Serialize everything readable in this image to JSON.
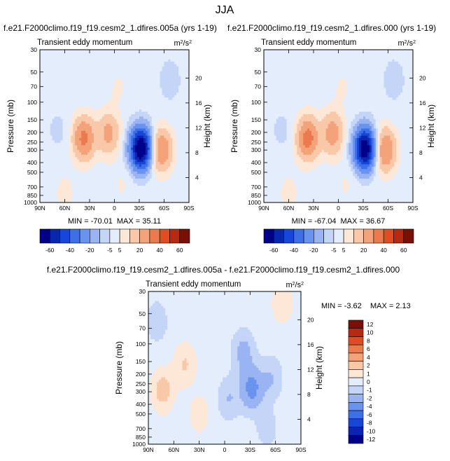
{
  "figure": {
    "title": "JJA",
    "left_run": "f.e21.F2000climo.f19_f19.cesm2_1.dfires.005a (yrs 1-19)",
    "right_run": "f.e21.F2000climo.f19_f19.cesm2_1.dfires.000 (yrs 1-19)",
    "diff_title": "f.e21.F2000climo.f19_f19.cesm2_1.dfires.005a - f.e21.F2000climo.f19_f19.cesm2_1.dfires.000"
  },
  "colors": {
    "main_scale": [
      "#00008b",
      "#0a25b0",
      "#1747d6",
      "#3d6fe8",
      "#6a93ef",
      "#9ab4f3",
      "#c4d5f7",
      "#e4edfb",
      "#fde7d6",
      "#f9c8a8",
      "#f3a27a",
      "#eb7a4f",
      "#e04d25",
      "#b82a10",
      "#7a1005"
    ],
    "diff_scale": [
      "#00008b",
      "#0a25b0",
      "#1747d6",
      "#3d6fe8",
      "#6a93ef",
      "#9ab4f3",
      "#c4d5f7",
      "#e4edfb",
      "#fde7d6",
      "#f9c8a8",
      "#f3a27a",
      "#eb7a4f",
      "#e04d25",
      "#b82a10",
      "#7a1005"
    ]
  },
  "chart_data": [
    {
      "type": "heatmap",
      "panel": "left",
      "title": "Transient eddy momentum",
      "units_base": "m",
      "units_sup": "2",
      "units_mid": "/s",
      "units_sup2": "2",
      "ylabel": "Pressure (mb)",
      "ylabel_right": "Height (km)",
      "xticks": [
        "90N",
        "60N",
        "30N",
        "0",
        "30S",
        "60S",
        "90S"
      ],
      "yticks": [
        30,
        50,
        70,
        100,
        150,
        200,
        250,
        300,
        400,
        500,
        700,
        850,
        1000
      ],
      "height_ticks": [
        20,
        16,
        12,
        8,
        4
      ],
      "ylim": [
        1000,
        30
      ],
      "xlim": [
        90,
        -90
      ],
      "min_label": "MIN = -70.01",
      "max_label": "MAX = 35.11",
      "min": -70.01,
      "max": 35.11,
      "colorbar_labels": [
        "-60",
        "-40",
        "-20",
        "-5",
        "5",
        "20",
        "40",
        "60"
      ],
      "levels": [
        -60,
        -50,
        -40,
        -30,
        -20,
        -10,
        -5,
        0,
        5,
        10,
        20,
        30,
        40,
        50,
        60
      ],
      "features": [
        {
          "lat": 37,
          "p": 230,
          "value": 28
        },
        {
          "lat": 7,
          "p": 205,
          "value": 18
        },
        {
          "lat": -32,
          "p": 290,
          "value": -70
        },
        {
          "lat": -56,
          "p": 300,
          "value": 26
        },
        {
          "lat": 68,
          "p": 190,
          "value": -4
        },
        {
          "lat": -67,
          "p": 60,
          "value": -6
        },
        {
          "lat": 60,
          "p": 800,
          "value": 4
        },
        {
          "lat": -10,
          "p": 650,
          "value": 3
        },
        {
          "lat": -5,
          "p": 70,
          "value": 3
        }
      ]
    },
    {
      "type": "heatmap",
      "panel": "right",
      "title": "Transient eddy momentum",
      "units_base": "m",
      "units_sup": "2",
      "units_mid": "/s",
      "units_sup2": "2",
      "ylabel": "Pressure (mb)",
      "ylabel_right": "Height (km)",
      "xticks": [
        "90N",
        "60N",
        "30N",
        "0",
        "30S",
        "60S",
        "90S"
      ],
      "yticks": [
        30,
        50,
        70,
        100,
        150,
        200,
        250,
        300,
        400,
        500,
        700,
        850,
        1000
      ],
      "height_ticks": [
        20,
        16,
        12,
        8,
        4
      ],
      "ylim": [
        1000,
        30
      ],
      "xlim": [
        90,
        -90
      ],
      "min_label": "MIN = -67.04",
      "max_label": "MAX = 36.67",
      "min": -67.04,
      "max": 36.67,
      "colorbar_labels": [
        "-60",
        "-40",
        "-20",
        "-5",
        "5",
        "20",
        "40",
        "60"
      ],
      "levels": [
        -60,
        -50,
        -40,
        -30,
        -20,
        -10,
        -5,
        0,
        5,
        10,
        20,
        30,
        40,
        50,
        60
      ],
      "features": [
        {
          "lat": 37,
          "p": 230,
          "value": 30
        },
        {
          "lat": 7,
          "p": 205,
          "value": 20
        },
        {
          "lat": -32,
          "p": 290,
          "value": -67
        },
        {
          "lat": -56,
          "p": 300,
          "value": 27
        },
        {
          "lat": 68,
          "p": 190,
          "value": -4
        },
        {
          "lat": -67,
          "p": 60,
          "value": -6
        },
        {
          "lat": 60,
          "p": 800,
          "value": 4
        },
        {
          "lat": -10,
          "p": 650,
          "value": 3
        },
        {
          "lat": -5,
          "p": 70,
          "value": 3
        }
      ]
    },
    {
      "type": "heatmap",
      "panel": "diff",
      "title": "Transient eddy momentum",
      "units_base": "m",
      "units_sup": "2",
      "units_mid": "/s",
      "units_sup2": "2",
      "ylabel": "Pressure (mb)",
      "ylabel_right": "Height (km)",
      "xticks": [
        "90N",
        "60N",
        "30N",
        "0",
        "30S",
        "60S",
        "90S"
      ],
      "yticks": [
        30,
        50,
        70,
        100,
        150,
        200,
        250,
        300,
        400,
        500,
        700,
        850,
        1000
      ],
      "height_ticks": [
        20,
        16,
        12,
        8,
        4
      ],
      "ylim": [
        1000,
        30
      ],
      "xlim": [
        90,
        -90
      ],
      "min_label": "MIN =  -3.62",
      "max_label": "MAX =   2.13",
      "min": -3.62,
      "max": 2.13,
      "colorbar_labels": [
        "12",
        "10",
        "8",
        "6",
        "4",
        "2",
        "1",
        "0",
        "-1",
        "-2",
        "-4",
        "-6",
        "-8",
        "-10",
        "-12"
      ],
      "levels": [
        -12,
        -10,
        -8,
        -6,
        -4,
        -2,
        -1,
        0,
        1,
        2,
        4,
        6,
        8,
        10,
        12
      ],
      "features": [
        {
          "lat": 73,
          "p": 290,
          "value": 2.1
        },
        {
          "lat": 47,
          "p": 160,
          "value": 1.6
        },
        {
          "lat": -32,
          "p": 280,
          "value": -3.6
        },
        {
          "lat": -22,
          "p": 120,
          "value": -2
        },
        {
          "lat": -5,
          "p": 350,
          "value": -1.5
        },
        {
          "lat": -55,
          "p": 220,
          "value": -1.5
        },
        {
          "lat": -68,
          "p": 40,
          "value": 1.2
        },
        {
          "lat": 30,
          "p": 500,
          "value": 1
        },
        {
          "lat": -50,
          "p": 700,
          "value": -1
        },
        {
          "lat": 80,
          "p": 60,
          "value": -1.2
        }
      ]
    }
  ]
}
